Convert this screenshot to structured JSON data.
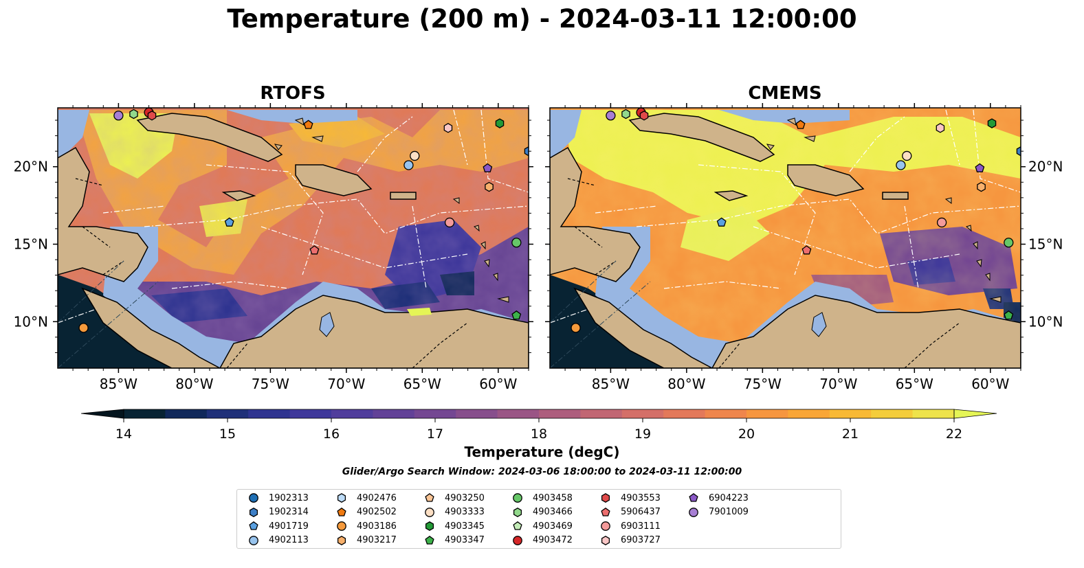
{
  "title": "Temperature (200 m) - 2024-03-11 12:00:00",
  "panels": [
    {
      "title": "RTOFS"
    },
    {
      "title": "CMEMS"
    }
  ],
  "axes": {
    "lon_ticks": [
      "85°W",
      "80°W",
      "75°W",
      "70°W",
      "65°W",
      "60°W"
    ],
    "lat_ticks": [
      "20°N",
      "15°N",
      "10°N"
    ]
  },
  "colorbar": {
    "label": "Temperature (degC)",
    "ticks": [
      "14",
      "15",
      "16",
      "17",
      "18",
      "19",
      "20",
      "21",
      "22"
    ],
    "range": [
      14,
      22
    ],
    "colors": [
      "#082333",
      "#10285a",
      "#1f3079",
      "#2f3490",
      "#3f389b",
      "#503d9c",
      "#624197",
      "#744792",
      "#874e8c",
      "#9a5585",
      "#ad5d7d",
      "#c16673",
      "#d46f68",
      "#e3795a",
      "#ef864c",
      "#f6963f",
      "#f9a636",
      "#f8b935",
      "#f4cd3b",
      "#eee34b"
    ],
    "under_color": "#04151e",
    "over_color": "#e5f556"
  },
  "search_window": "Glider/Argo Search Window: 2024-03-06 18:00:00 to 2024-03-11 12:00:00",
  "land_color": "#cfb38a",
  "shelf_color": "#98b6e2",
  "legend": [
    {
      "id": "1902313",
      "shape": "circle",
      "color": "#1f6fb4"
    },
    {
      "id": "1902314",
      "shape": "hexagon",
      "color": "#3d7fc7"
    },
    {
      "id": "4901719",
      "shape": "pentagon",
      "color": "#5aa0e0"
    },
    {
      "id": "4902113",
      "shape": "circle",
      "color": "#98c4ee"
    },
    {
      "id": "4902476",
      "shape": "hexagon",
      "color": "#bddcf8"
    },
    {
      "id": "4902502",
      "shape": "pentagon",
      "color": "#f07a10"
    },
    {
      "id": "4903186",
      "shape": "circle",
      "color": "#f59a3c"
    },
    {
      "id": "4903217",
      "shape": "hexagon",
      "color": "#f7b06c"
    },
    {
      "id": "4903250",
      "shape": "pentagon",
      "color": "#fac596"
    },
    {
      "id": "4903333",
      "shape": "circle",
      "color": "#fcdfc4"
    },
    {
      "id": "4903345",
      "shape": "hexagon",
      "color": "#239a37"
    },
    {
      "id": "4903347",
      "shape": "pentagon",
      "color": "#3db24a"
    },
    {
      "id": "4903458",
      "shape": "circle",
      "color": "#66c768"
    },
    {
      "id": "4903466",
      "shape": "hexagon",
      "color": "#92d98c"
    },
    {
      "id": "4903469",
      "shape": "pentagon",
      "color": "#c4edb8"
    },
    {
      "id": "4903472",
      "shape": "circle",
      "color": "#d62728"
    },
    {
      "id": "4903553",
      "shape": "hexagon",
      "color": "#e04a4a"
    },
    {
      "id": "5906437",
      "shape": "pentagon",
      "color": "#ec6e6e"
    },
    {
      "id": "6903111",
      "shape": "circle",
      "color": "#f39a9a"
    },
    {
      "id": "6903727",
      "shape": "hexagon",
      "color": "#f9c6c6"
    },
    {
      "id": "6904223",
      "shape": "pentagon",
      "color": "#8a58c6"
    },
    {
      "id": "7901009",
      "shape": "circle",
      "color": "#a77fd4"
    }
  ],
  "floats": [
    {
      "id": "7901009",
      "lon": -85.0,
      "lat": 23.3
    },
    {
      "id": "4903466",
      "lon": -84.0,
      "lat": 23.4
    },
    {
      "id": "4903472",
      "lon": -83.0,
      "lat": 23.5
    },
    {
      "id": "4903553",
      "lon": -82.8,
      "lat": 23.3
    },
    {
      "id": "4902502",
      "lon": -72.5,
      "lat": 22.7
    },
    {
      "id": "6903727",
      "lon": -63.3,
      "lat": 22.5
    },
    {
      "id": "4903345",
      "lon": -59.9,
      "lat": 22.8
    },
    {
      "id": "1902314",
      "lon": -58.0,
      "lat": 21.0
    },
    {
      "id": "4903333",
      "lon": -65.5,
      "lat": 20.7
    },
    {
      "id": "4902113",
      "lon": -65.9,
      "lat": 20.1
    },
    {
      "id": "6904223",
      "lon": -60.7,
      "lat": 19.9
    },
    {
      "id": "4903217",
      "lon": -60.6,
      "lat": 18.7
    },
    {
      "id": "4901719",
      "lon": -77.7,
      "lat": 16.4
    },
    {
      "id": "6903111",
      "lon": -63.2,
      "lat": 16.4
    },
    {
      "id": "5906437",
      "lon": -72.1,
      "lat": 14.6
    },
    {
      "id": "4903458",
      "lon": -58.8,
      "lat": 15.1
    },
    {
      "id": "4903347",
      "lon": -58.8,
      "lat": 10.4
    },
    {
      "id": "4903186",
      "lon": -87.3,
      "lat": 9.6
    }
  ]
}
